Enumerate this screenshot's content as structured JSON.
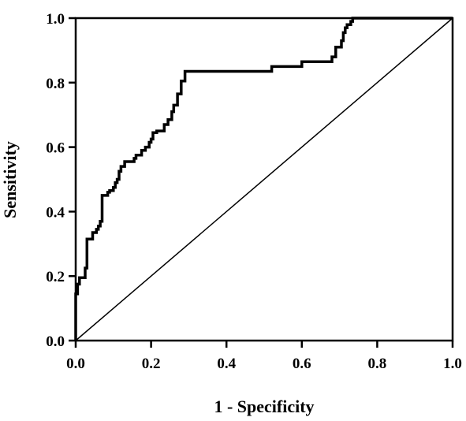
{
  "chart_data": {
    "type": "line",
    "title": "",
    "xlabel": "1 - Specificity",
    "ylabel": "Sensitivity",
    "xlim": [
      0,
      1
    ],
    "ylim": [
      0,
      1
    ],
    "x_ticks": [
      "0.0",
      "0.2",
      "0.4",
      "0.6",
      "0.8",
      "1.0"
    ],
    "y_ticks": [
      "0.0",
      "0.2",
      "0.4",
      "0.6",
      "0.8",
      "1.0"
    ],
    "grid": false,
    "legend": "none",
    "line_color": "#000000",
    "series": [
      {
        "style": "thick-step",
        "x": [
          0.0,
          0.0,
          0.005,
          0.005,
          0.01,
          0.01,
          0.025,
          0.025,
          0.03,
          0.03,
          0.045,
          0.045,
          0.055,
          0.055,
          0.06,
          0.06,
          0.065,
          0.065,
          0.07,
          0.07,
          0.085,
          0.085,
          0.09,
          0.09,
          0.1,
          0.1,
          0.105,
          0.105,
          0.11,
          0.11,
          0.115,
          0.115,
          0.12,
          0.12,
          0.13,
          0.13,
          0.155,
          0.155,
          0.16,
          0.16,
          0.175,
          0.175,
          0.185,
          0.185,
          0.195,
          0.195,
          0.2,
          0.2,
          0.205,
          0.205,
          0.215,
          0.215,
          0.235,
          0.235,
          0.245,
          0.245,
          0.255,
          0.255,
          0.26,
          0.26,
          0.27,
          0.27,
          0.28,
          0.28,
          0.29,
          0.29,
          0.52,
          0.52,
          0.6,
          0.6,
          0.68,
          0.68,
          0.69,
          0.69,
          0.705,
          0.705,
          0.71,
          0.71,
          0.715,
          0.715,
          0.72,
          0.72,
          0.73,
          0.73,
          0.735,
          0.735,
          1.0
        ],
        "y": [
          0.0,
          0.145,
          0.145,
          0.175,
          0.175,
          0.195,
          0.195,
          0.225,
          0.225,
          0.315,
          0.315,
          0.335,
          0.335,
          0.345,
          0.345,
          0.355,
          0.355,
          0.37,
          0.37,
          0.45,
          0.45,
          0.46,
          0.46,
          0.465,
          0.465,
          0.475,
          0.475,
          0.49,
          0.49,
          0.5,
          0.5,
          0.525,
          0.525,
          0.54,
          0.54,
          0.555,
          0.555,
          0.565,
          0.565,
          0.575,
          0.575,
          0.59,
          0.59,
          0.6,
          0.6,
          0.615,
          0.615,
          0.625,
          0.625,
          0.645,
          0.645,
          0.65,
          0.65,
          0.67,
          0.67,
          0.685,
          0.685,
          0.71,
          0.71,
          0.73,
          0.73,
          0.765,
          0.765,
          0.805,
          0.805,
          0.835,
          0.835,
          0.85,
          0.85,
          0.865,
          0.865,
          0.88,
          0.88,
          0.91,
          0.91,
          0.93,
          0.93,
          0.955,
          0.955,
          0.97,
          0.97,
          0.98,
          0.98,
          0.99,
          0.99,
          1.0,
          1.0
        ]
      },
      {
        "style": "thin-diagonal",
        "x": [
          0,
          1
        ],
        "y": [
          0,
          1
        ]
      }
    ]
  }
}
